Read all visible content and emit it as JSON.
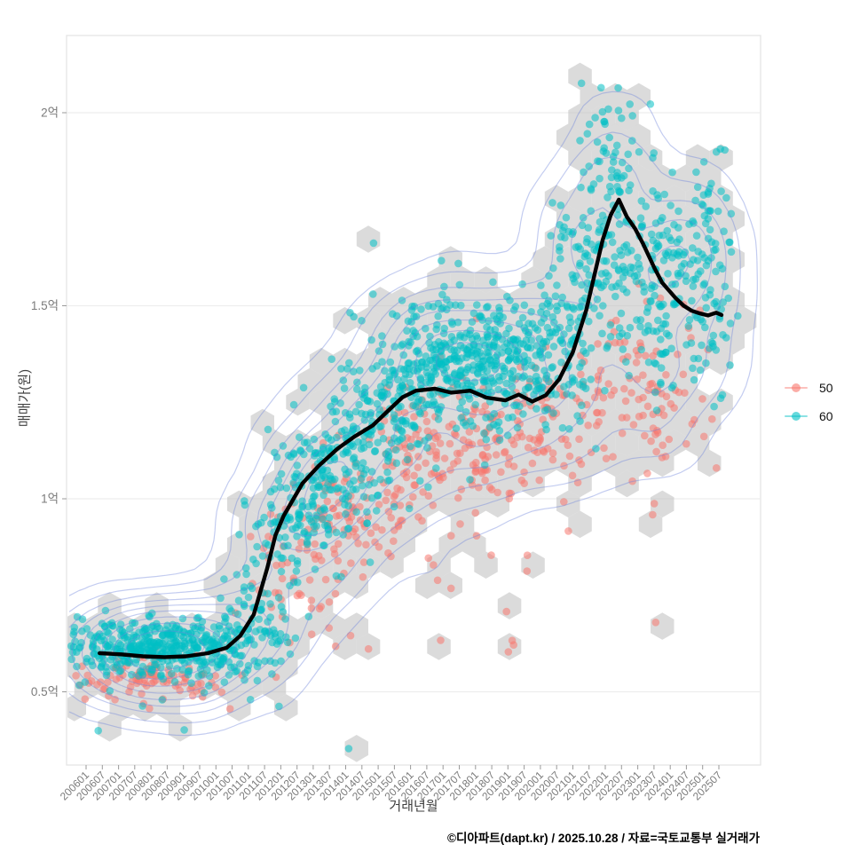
{
  "caption": "©디아파트(dapt.kr) / 2025.10.28 / 자료=국토교통부 실거래가",
  "axes": {
    "x": {
      "label": "거래년월",
      "tick_labels": [
        "200601",
        "200607",
        "200701",
        "200707",
        "200801",
        "200807",
        "200901",
        "200907",
        "201001",
        "201007",
        "201101",
        "201107",
        "201201",
        "201207",
        "201301",
        "201307",
        "201401",
        "201407",
        "201501",
        "201507",
        "201601",
        "201607",
        "201701",
        "201707",
        "201801",
        "201807",
        "201901",
        "201907",
        "202001",
        "202007",
        "202101",
        "202107",
        "202201",
        "202207",
        "202301",
        "202307",
        "202401",
        "202407",
        "202501",
        "202507"
      ]
    },
    "y": {
      "label": "매매가(원)",
      "ticks": [
        {
          "label": "0.5억",
          "value": 0.5
        },
        {
          "label": "1억",
          "value": 1.0
        },
        {
          "label": "1.5억",
          "value": 1.5
        },
        {
          "label": "2억",
          "value": 2.0
        }
      ]
    }
  },
  "legend": {
    "items": [
      {
        "label": "50",
        "color": "#F8766D"
      },
      {
        "label": "60",
        "color": "#00BFC4"
      }
    ]
  },
  "chart_data": {
    "type": "scatter",
    "title": "",
    "xlabel": "거래년월",
    "ylabel": "매매가(원)",
    "y_unit": "억원",
    "ylim": [
      0.35,
      2.2
    ],
    "x_range": [
      "2006-01",
      "2025-10"
    ],
    "grid": "horizontal-major-only",
    "legend_position": "right",
    "layers": [
      "hexbin-gray",
      "scatter-points",
      "density-contours-blue",
      "trend-line-black"
    ],
    "series": [
      {
        "name": "50",
        "type": "scatter",
        "color": "#F8766D"
      },
      {
        "name": "60",
        "type": "scatter",
        "color": "#00BFC4"
      }
    ],
    "colors": {
      "hexbin_fill": "#BDBDBD",
      "contour_stroke": "#6F85DB",
      "trend_stroke": "#000000",
      "gridline": "#EDEDED",
      "panel_border": "#E2E2E2",
      "tick_text": "#7B7B7B"
    },
    "trend_line": {
      "name": "trend",
      "color": "#000000",
      "points": [
        [
          "2006-06",
          0.6
        ],
        [
          "2007-02",
          0.597
        ],
        [
          "2007-10",
          0.592
        ],
        [
          "2008-06",
          0.59
        ],
        [
          "2009-02",
          0.592
        ],
        [
          "2009-10",
          0.6
        ],
        [
          "2010-05",
          0.614
        ],
        [
          "2010-10",
          0.645
        ],
        [
          "2011-03",
          0.7
        ],
        [
          "2011-08",
          0.82
        ],
        [
          "2011-11",
          0.905
        ],
        [
          "2012-02",
          0.955
        ],
        [
          "2012-09",
          1.04
        ],
        [
          "2013-03",
          1.085
        ],
        [
          "2013-10",
          1.13
        ],
        [
          "2014-04",
          1.16
        ],
        [
          "2014-11",
          1.19
        ],
        [
          "2015-05",
          1.23
        ],
        [
          "2015-10",
          1.263
        ],
        [
          "2016-03",
          1.28
        ],
        [
          "2016-10",
          1.285
        ],
        [
          "2017-04",
          1.275
        ],
        [
          "2017-11",
          1.28
        ],
        [
          "2018-05",
          1.262
        ],
        [
          "2018-12",
          1.255
        ],
        [
          "2019-05",
          1.27
        ],
        [
          "2019-10",
          1.252
        ],
        [
          "2020-03",
          1.268
        ],
        [
          "2020-08",
          1.31
        ],
        [
          "2021-01",
          1.38
        ],
        [
          "2021-06",
          1.49
        ],
        [
          "2021-09",
          1.58
        ],
        [
          "2021-12",
          1.67
        ],
        [
          "2022-03",
          1.735
        ],
        [
          "2022-06",
          1.775
        ],
        [
          "2022-09",
          1.73
        ],
        [
          "2022-12",
          1.7
        ],
        [
          "2023-03",
          1.66
        ],
        [
          "2023-07",
          1.6
        ],
        [
          "2023-10",
          1.56
        ],
        [
          "2024-03",
          1.52
        ],
        [
          "2024-06",
          1.5
        ],
        [
          "2024-09",
          1.487
        ],
        [
          "2024-12",
          1.48
        ],
        [
          "2025-03",
          1.475
        ],
        [
          "2025-06",
          1.482
        ],
        [
          "2025-08",
          1.476
        ]
      ]
    },
    "scatter_distribution_approx": {
      "note": "dense point cloud approximated by gaussian clusters: c=center month, sm=sd in months, p=center price(억), sp=sd price, n=points",
      "60": [
        {
          "c": "2007-06",
          "sm": 17,
          "p": 0.615,
          "sp": 0.035,
          "n": 260
        },
        {
          "c": "2009-05",
          "sm": 13,
          "p": 0.612,
          "sp": 0.04,
          "n": 160
        },
        {
          "c": "2011-04",
          "sm": 7,
          "p": 0.66,
          "sp": 0.07,
          "n": 80
        },
        {
          "c": "2012-06",
          "sm": 8,
          "p": 0.95,
          "sp": 0.11,
          "n": 110
        },
        {
          "c": "2013-09",
          "sm": 9,
          "p": 1.07,
          "sp": 0.1,
          "n": 130
        },
        {
          "c": "2015-03",
          "sm": 10,
          "p": 1.22,
          "sp": 0.1,
          "n": 150
        },
        {
          "c": "2016-09",
          "sm": 10,
          "p": 1.35,
          "sp": 0.09,
          "n": 170
        },
        {
          "c": "2018-03",
          "sm": 10,
          "p": 1.36,
          "sp": 0.09,
          "n": 170
        },
        {
          "c": "2019-09",
          "sm": 10,
          "p": 1.36,
          "sp": 0.09,
          "n": 140
        },
        {
          "c": "2021-03",
          "sm": 8,
          "p": 1.5,
          "sp": 0.14,
          "n": 110
        },
        {
          "c": "2022-03",
          "sm": 6,
          "p": 1.74,
          "sp": 0.18,
          "n": 95
        },
        {
          "c": "2023-03",
          "sm": 7,
          "p": 1.62,
          "sp": 0.15,
          "n": 100
        },
        {
          "c": "2024-06",
          "sm": 8,
          "p": 1.54,
          "sp": 0.15,
          "n": 100
        },
        {
          "c": "2025-04",
          "sm": 4,
          "p": 1.6,
          "sp": 0.17,
          "n": 55
        },
        {
          "c": "2009-01",
          "sm": 30,
          "p": 0.47,
          "sp": 0.05,
          "n": 15
        }
      ],
      "50": [
        {
          "c": "2008-01",
          "sm": 16,
          "p": 0.525,
          "sp": 0.03,
          "n": 100
        },
        {
          "c": "2012-09",
          "sm": 10,
          "p": 0.84,
          "sp": 0.09,
          "n": 70
        },
        {
          "c": "2014-06",
          "sm": 10,
          "p": 0.98,
          "sp": 0.08,
          "n": 70
        },
        {
          "c": "2016-06",
          "sm": 10,
          "p": 1.13,
          "sp": 0.08,
          "n": 85
        },
        {
          "c": "2018-06",
          "sm": 12,
          "p": 1.15,
          "sp": 0.09,
          "n": 85
        },
        {
          "c": "2020-06",
          "sm": 10,
          "p": 1.18,
          "sp": 0.1,
          "n": 60
        },
        {
          "c": "2022-06",
          "sm": 8,
          "p": 1.3,
          "sp": 0.1,
          "n": 45
        },
        {
          "c": "2023-11",
          "sm": 10,
          "p": 1.25,
          "sp": 0.12,
          "n": 55
        },
        {
          "c": "2017-06",
          "sm": 40,
          "p": 0.85,
          "sp": 0.12,
          "n": 22
        }
      ]
    }
  }
}
